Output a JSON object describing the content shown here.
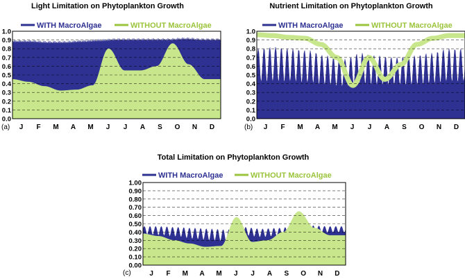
{
  "colors": {
    "with": "#2e3192",
    "without": "#c8e68c",
    "legend_without": "#9bc43c"
  },
  "months": [
    "J",
    "F",
    "M",
    "A",
    "M",
    "J",
    "J",
    "A",
    "S",
    "O",
    "N",
    "D"
  ],
  "chart_data": [
    {
      "type": "area",
      "panel_label": "(a)",
      "title": "Light Limitation on Phytoplankton Growth",
      "ylim": [
        0,
        1.0
      ],
      "yticks": [
        "0.0",
        "0.1",
        "0.2",
        "0.3",
        "0.4",
        "0.5",
        "0.6",
        "0.7",
        "0.8",
        "0.9",
        "1.0"
      ],
      "xticks": [
        "J",
        "F",
        "M",
        "A",
        "M",
        "J",
        "J",
        "A",
        "S",
        "O",
        "N",
        "D"
      ],
      "grid": "horizontal dashed",
      "legend_placement": "top",
      "series": [
        {
          "name": "WITH MacroAlgae",
          "month_values": [
            0.88,
            0.88,
            0.87,
            0.87,
            0.88,
            0.89,
            0.9,
            0.9,
            0.9,
            0.9,
            0.91,
            0.9
          ],
          "oscillation": 0.02
        },
        {
          "name": "WITHOUT MacroAlgae",
          "month_values": [
            0.45,
            0.42,
            0.37,
            0.32,
            0.33,
            0.38,
            0.8,
            0.55,
            0.55,
            0.6,
            0.86,
            0.62,
            0.45
          ]
        }
      ]
    },
    {
      "type": "area",
      "panel_label": "(b)",
      "title": "Nutrient Limitation on Phytoplankton Growth",
      "ylim": [
        0,
        1.0
      ],
      "yticks": [
        "0.0",
        "0.1",
        "0.2",
        "0.3",
        "0.4",
        "0.5",
        "0.6",
        "0.7",
        "0.8",
        "0.9",
        "1.0"
      ],
      "xticks": [
        "J",
        "F",
        "M",
        "A",
        "M",
        "J",
        "J",
        "A",
        "S",
        "O",
        "N",
        "D"
      ],
      "grid": "horizontal dashed",
      "legend_placement": "top",
      "series": [
        {
          "name": "WITH MacroAlgae",
          "month_low": [
            0.21,
            0.2,
            0.21,
            0.2,
            0.2,
            0.19,
            0.2,
            0.2,
            0.21,
            0.2,
            0.2,
            0.21
          ],
          "month_high": [
            0.8,
            0.82,
            0.8,
            0.78,
            0.72,
            0.68,
            0.75,
            0.72,
            0.7,
            0.72,
            0.75,
            0.8
          ]
        },
        {
          "name": "WITHOUT MacroAlgae",
          "month_values": [
            0.96,
            0.95,
            0.93,
            0.92,
            0.85,
            0.7,
            0.38,
            0.7,
            0.45,
            0.62,
            0.85,
            0.92,
            0.95
          ]
        }
      ]
    },
    {
      "type": "area",
      "panel_label": "(c)",
      "title": "Total Limitation on Phytoplankton Growth",
      "ylim": [
        0,
        1.0
      ],
      "yticks": [
        "0.00",
        "0.10",
        "0.20",
        "0.30",
        "0.40",
        "0.50",
        "0.60",
        "0.70",
        "0.80",
        "0.90",
        "1.00"
      ],
      "xticks": [
        "J",
        "F",
        "M",
        "A",
        "M",
        "J",
        "J",
        "A",
        "S",
        "O",
        "N",
        "D"
      ],
      "grid": "horizontal dashed",
      "legend_placement": "top",
      "series": [
        {
          "name": "WITH MacroAlgae",
          "month_low": [
            0.32,
            0.3,
            0.28,
            0.24,
            0.22,
            0.21,
            0.3,
            0.28,
            0.3,
            0.32,
            0.34,
            0.35
          ],
          "month_high": [
            0.47,
            0.47,
            0.46,
            0.45,
            0.44,
            0.43,
            0.46,
            0.44,
            0.45,
            0.47,
            0.48,
            0.47
          ]
        },
        {
          "name": "WITHOUT MacroAlgae",
          "month_values": [
            0.38,
            0.35,
            0.3,
            0.26,
            0.22,
            0.23,
            0.58,
            0.28,
            0.3,
            0.4,
            0.65,
            0.45,
            0.36
          ]
        }
      ]
    }
  ]
}
